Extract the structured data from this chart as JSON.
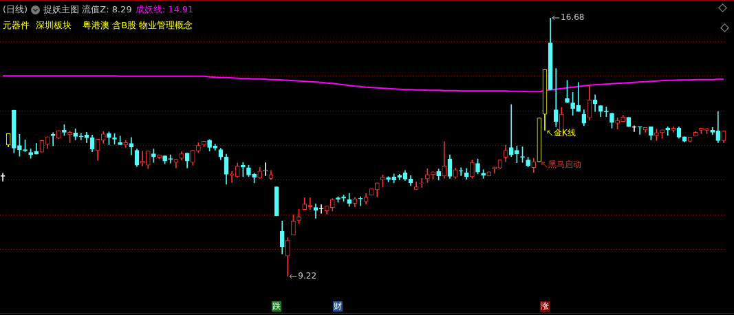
{
  "chart_data": {
    "type": "candlestick",
    "title": "(日线)",
    "subtitle": "捉妖主图 流值Z: 8.29",
    "categories": [
      null,
      null,
      null,
      null,
      null,
      null,
      null,
      null,
      null,
      null,
      null,
      null,
      null,
      null,
      null,
      null,
      null,
      null,
      null,
      null,
      null,
      null,
      null,
      null,
      null,
      null,
      null,
      null,
      null,
      null,
      null,
      null,
      null,
      null,
      null,
      null,
      null,
      null,
      null,
      null,
      null,
      null,
      null,
      null,
      null,
      null,
      null,
      null,
      null,
      null,
      null,
      null,
      null,
      null,
      null,
      null,
      null,
      null,
      null,
      null,
      null,
      null,
      null,
      null,
      null,
      null,
      null,
      null,
      null,
      null,
      null,
      null,
      null,
      null,
      null,
      null,
      null,
      null,
      null,
      null,
      null,
      null,
      null,
      null,
      null,
      null,
      null,
      null,
      null,
      null,
      null,
      null,
      null,
      null,
      null,
      null,
      null,
      null,
      null,
      null,
      null,
      null,
      null,
      null,
      null,
      null,
      null,
      null,
      null,
      null,
      null,
      null,
      null,
      null,
      null,
      null,
      null,
      null,
      null,
      null,
      null,
      null,
      null,
      null,
      null,
      null,
      null,
      null,
      null,
      null
    ],
    "ohlc": [
      [
        12.11,
        12.2,
        11.97,
        12.11
      ],
      [
        13.01,
        13.34,
        12.96,
        13.34
      ],
      [
        14.02,
        14.02,
        12.79,
        12.92
      ],
      [
        13.0,
        13.32,
        12.69,
        12.87
      ],
      [
        12.88,
        13.16,
        12.82,
        12.84
      ],
      [
        12.8,
        12.9,
        12.63,
        12.73
      ],
      [
        12.83,
        13.06,
        12.75,
        12.75
      ],
      [
        12.81,
        13.14,
        12.81,
        13.14
      ],
      [
        13.03,
        13.25,
        12.91,
        13.25
      ],
      [
        13.32,
        13.37,
        12.99,
        13.28
      ],
      [
        13.21,
        13.43,
        13.19,
        13.43
      ],
      [
        13.44,
        13.6,
        13.29,
        13.38
      ],
      [
        13.31,
        13.42,
        13.08,
        13.38
      ],
      [
        13.36,
        13.48,
        13.16,
        13.26
      ],
      [
        13.26,
        13.35,
        13.16,
        13.25
      ],
      [
        13.3,
        13.38,
        13.08,
        13.22
      ],
      [
        13.22,
        13.3,
        12.82,
        12.89
      ],
      [
        12.85,
        13.18,
        12.57,
        13.18
      ],
      [
        13.15,
        13.4,
        13.06,
        13.33
      ],
      [
        13.34,
        13.39,
        13.02,
        13.23
      ],
      [
        13.22,
        13.34,
        13.04,
        13.18
      ],
      [
        13.08,
        13.27,
        13.02,
        13.02
      ],
      [
        13.01,
        13.14,
        12.94,
        13.08
      ],
      [
        13.06,
        13.23,
        12.73,
        12.95
      ],
      [
        12.86,
        12.9,
        12.39,
        12.43
      ],
      [
        12.49,
        12.84,
        12.41,
        12.55
      ],
      [
        12.43,
        12.84,
        12.33,
        12.84
      ],
      [
        12.76,
        12.9,
        12.51,
        12.67
      ],
      [
        12.66,
        12.73,
        12.61,
        12.73
      ],
      [
        12.7,
        12.7,
        12.47,
        12.55
      ],
      [
        12.61,
        12.73,
        12.49,
        12.6
      ],
      [
        12.51,
        12.6,
        12.35,
        12.6
      ],
      [
        12.63,
        12.82,
        12.58,
        12.76
      ],
      [
        12.78,
        12.78,
        12.35,
        12.55
      ],
      [
        12.51,
        12.86,
        12.43,
        12.86
      ],
      [
        12.84,
        13.08,
        12.79,
        13.0
      ],
      [
        13.01,
        13.12,
        12.96,
        13.12
      ],
      [
        13.15,
        13.17,
        12.84,
        12.94
      ],
      [
        12.99,
        13.04,
        12.86,
        12.92
      ],
      [
        12.88,
        12.92,
        12.59,
        12.67
      ],
      [
        12.67,
        12.75,
        11.88,
        12.17
      ],
      [
        12.14,
        12.25,
        11.93,
        12.18
      ],
      [
        12.1,
        12.49,
        12.08,
        12.41
      ],
      [
        12.43,
        12.51,
        12.1,
        12.37
      ],
      [
        12.36,
        12.43,
        12.1,
        12.15
      ],
      [
        12.17,
        12.2,
        11.92,
        12.08
      ],
      [
        12.07,
        12.37,
        12.05,
        12.26
      ],
      [
        12.26,
        12.5,
        12.13,
        12.27
      ],
      [
        12.05,
        12.28,
        12.01,
        12.16
      ],
      [
        11.81,
        11.81,
        10.97,
        10.97
      ],
      [
        10.53,
        10.82,
        9.87,
        10.08
      ],
      [
        9.81,
        10.34,
        9.22,
        10.26
      ],
      [
        10.41,
        11.0,
        10.41,
        10.82
      ],
      [
        10.84,
        11.16,
        10.75,
        10.94
      ],
      [
        11.15,
        11.49,
        11.15,
        11.31
      ],
      [
        11.23,
        11.49,
        11.15,
        11.28
      ],
      [
        11.21,
        11.31,
        10.9,
        11.13
      ],
      [
        11.17,
        11.29,
        11.04,
        11.17
      ],
      [
        11.11,
        11.25,
        11.02,
        11.25
      ],
      [
        11.21,
        11.47,
        11.11,
        11.44
      ],
      [
        11.49,
        11.52,
        11.36,
        11.45
      ],
      [
        11.52,
        11.57,
        11.39,
        11.48
      ],
      [
        11.44,
        11.62,
        11.24,
        11.33
      ],
      [
        11.33,
        11.5,
        11.23,
        11.46
      ],
      [
        11.47,
        11.52,
        11.26,
        11.46
      ],
      [
        11.38,
        11.61,
        11.31,
        11.51
      ],
      [
        11.57,
        11.75,
        11.57,
        11.75
      ],
      [
        11.72,
        11.92,
        11.52,
        11.92
      ],
      [
        12.01,
        12.15,
        11.8,
        12.09
      ],
      [
        12.07,
        12.1,
        11.95,
        12.02
      ],
      [
        12.09,
        12.18,
        11.92,
        12.0
      ],
      [
        12.13,
        12.17,
        12.01,
        12.08
      ],
      [
        12.21,
        12.28,
        11.99,
        12.03
      ],
      [
        12.03,
        12.13,
        11.84,
        11.92
      ],
      [
        11.73,
        11.95,
        11.73,
        11.81
      ],
      [
        11.9,
        12.05,
        11.79,
        11.91
      ],
      [
        12.04,
        12.33,
        11.93,
        12.16
      ],
      [
        12.16,
        12.24,
        12.03,
        12.24
      ],
      [
        12.25,
        12.32,
        12.0,
        12.12
      ],
      [
        12.12,
        13.11,
        12.05,
        12.41
      ],
      [
        12.61,
        12.73,
        12.05,
        12.11
      ],
      [
        12.09,
        12.35,
        12.05,
        12.3
      ],
      [
        12.27,
        12.36,
        12.13,
        12.26
      ],
      [
        12.21,
        12.34,
        12.02,
        12.1
      ],
      [
        12.1,
        12.58,
        12.05,
        12.51
      ],
      [
        12.48,
        12.61,
        12.18,
        12.23
      ],
      [
        12.2,
        12.3,
        12.05,
        12.14
      ],
      [
        12.12,
        12.24,
        12.12,
        12.24
      ],
      [
        12.32,
        12.38,
        12.2,
        12.38
      ],
      [
        12.35,
        12.58,
        12.33,
        12.58
      ],
      [
        12.66,
        13.01,
        12.53,
        12.86
      ],
      [
        12.94,
        14.18,
        12.68,
        12.73
      ],
      [
        12.86,
        12.98,
        12.5,
        12.76
      ],
      [
        12.67,
        12.96,
        12.51,
        12.66
      ],
      [
        12.58,
        12.66,
        12.38,
        12.41
      ],
      [
        12.36,
        12.63,
        12.22,
        12.53
      ],
      [
        12.53,
        13.79,
        12.53,
        13.79
      ],
      [
        13.9,
        15.19,
        13.44,
        15.19
      ],
      [
        15.96,
        16.68,
        14.61,
        14.61
      ],
      [
        14.03,
        15.22,
        13.54,
        13.69
      ],
      [
        13.27,
        14.1,
        13.27,
        13.9
      ],
      [
        14.35,
        14.88,
        14.23,
        14.24
      ],
      [
        14.23,
        14.53,
        13.87,
        14.07
      ],
      [
        14.16,
        14.82,
        13.98,
        13.98
      ],
      [
        13.9,
        14.03,
        13.57,
        13.64
      ],
      [
        13.8,
        14.74,
        13.74,
        14.31
      ],
      [
        14.31,
        14.46,
        13.98,
        14.2
      ],
      [
        14.15,
        14.15,
        13.83,
        13.98
      ],
      [
        13.98,
        14.11,
        13.83,
        13.97
      ],
      [
        13.93,
        13.93,
        13.5,
        13.66
      ],
      [
        13.64,
        13.8,
        13.47,
        13.72
      ],
      [
        13.69,
        13.87,
        13.69,
        13.82
      ],
      [
        13.81,
        13.81,
        13.54,
        13.54
      ],
      [
        13.53,
        13.57,
        13.4,
        13.52
      ],
      [
        13.54,
        13.54,
        13.32,
        13.53
      ],
      [
        13.45,
        13.52,
        13.38,
        13.52
      ],
      [
        13.54,
        13.54,
        13.16,
        13.29
      ],
      [
        13.29,
        13.47,
        13.14,
        13.37
      ],
      [
        13.37,
        13.45,
        13.21,
        13.45
      ],
      [
        13.5,
        13.54,
        13.29,
        13.45
      ],
      [
        13.44,
        13.54,
        13.38,
        13.5
      ],
      [
        13.5,
        13.54,
        13.21,
        13.24
      ],
      [
        13.25,
        13.25,
        13.1,
        13.12
      ],
      [
        13.12,
        13.24,
        13.1,
        13.24
      ],
      [
        13.27,
        13.4,
        13.27,
        13.38
      ],
      [
        13.44,
        13.5,
        13.34,
        13.5
      ],
      [
        13.44,
        13.49,
        13.34,
        13.49
      ],
      [
        13.44,
        13.52,
        13.31,
        13.38
      ],
      [
        13.42,
        13.98,
        13.08,
        13.14
      ],
      [
        13.14,
        13.42,
        13.08,
        13.42
      ]
    ],
    "colors": [
      "#ffffff",
      "#ffff00",
      "#54fcfc",
      "#54fcfc",
      "#54fcfc",
      "#54fcfc",
      "#54fcfc",
      "#ff3232",
      "#ff3232",
      "#54fcfc",
      "#ff3232",
      "#54fcfc",
      "#ff3232",
      "#54fcfc",
      "#54fcfc",
      "#54fcfc",
      "#54fcfc",
      "#ff3232",
      "#ff3232",
      "#54fcfc",
      "#54fcfc",
      "#54fcfc",
      "#ff3232",
      "#54fcfc",
      "#54fcfc",
      "#ff3232",
      "#ff3232",
      "#54fcfc",
      "#ff3232",
      "#54fcfc",
      "#54fcfc",
      "#ff3232",
      "#ff3232",
      "#54fcfc",
      "#ff3232",
      "#ff3232",
      "#ff3232",
      "#54fcfc",
      "#54fcfc",
      "#54fcfc",
      "#54fcfc",
      "#ff3232",
      "#ff3232",
      "#54fcfc",
      "#54fcfc",
      "#54fcfc",
      "#ff3232",
      "#ffffff",
      "#ff3232",
      "#54fcfc",
      "#54fcfc",
      "#ff3232",
      "#ff3232",
      "#ff3232",
      "#ff3232",
      "#ff3232",
      "#54fcfc",
      "#ffffff",
      "#ff3232",
      "#ff3232",
      "#54fcfc",
      "#54fcfc",
      "#54fcfc",
      "#ff3232",
      "#54fcfc",
      "#ff3232",
      "#ff3232",
      "#ff3232",
      "#ff3232",
      "#54fcfc",
      "#54fcfc",
      "#54fcfc",
      "#54fcfc",
      "#54fcfc",
      "#ff3232",
      "#ff3232",
      "#ff3232",
      "#ff3232",
      "#54fcfc",
      "#ff3232",
      "#54fcfc",
      "#ff3232",
      "#54fcfc",
      "#54fcfc",
      "#ff3232",
      "#54fcfc",
      "#54fcfc",
      "#ff3232",
      "#ff3232",
      "#ff3232",
      "#ff3232",
      "#54fcfc",
      "#54fcfc",
      "#54fcfc",
      "#54fcfc",
      "#ff3232",
      "#ffff00",
      "#ffff00",
      "#54fcfc",
      "#54fcfc",
      "#ff3232",
      "#54fcfc",
      "#54fcfc",
      "#54fcfc",
      "#54fcfc",
      "#ff3232",
      "#54fcfc",
      "#54fcfc",
      "#54fcfc",
      "#54fcfc",
      "#ff3232",
      "#ff3232",
      "#54fcfc",
      "#ffffff",
      "#54fcfc",
      "#ff3232",
      "#54fcfc",
      "#ff3232",
      "#ff3232",
      "#54fcfc",
      "#ff3232",
      "#54fcfc",
      "#54fcfc",
      "#ff3232",
      "#ff3232",
      "#ff3232",
      "#ff3232",
      "#54fcfc",
      "#54fcfc",
      "#ff3232"
    ],
    "series": [
      {
        "type": "line",
        "name": "成妖线: 14.91",
        "color": "#ff00ff",
        "values": [
          15.01,
          15.01,
          15.01,
          15.01,
          15.01,
          15.01,
          15.01,
          15.01,
          15.01,
          15.01,
          15.01,
          15.01,
          15.01,
          15.01,
          15.01,
          15.01,
          15.01,
          15.01,
          15.01,
          15.01,
          15.01,
          15.0,
          15.0,
          15.0,
          15.0,
          15.0,
          15.0,
          15.0,
          15.0,
          15.0,
          15.0,
          15.0,
          15.0,
          15.0,
          15.0,
          15.0,
          15.0,
          14.98,
          14.97,
          14.96,
          14.96,
          14.95,
          14.94,
          14.93,
          14.93,
          14.92,
          14.92,
          14.91,
          14.9,
          14.9,
          14.89,
          14.88,
          14.87,
          14.86,
          14.85,
          14.84,
          14.83,
          14.82,
          14.8,
          14.79,
          14.77,
          14.75,
          14.73,
          14.71,
          14.7,
          14.68,
          14.67,
          14.66,
          14.65,
          14.64,
          14.63,
          14.62,
          14.61,
          14.61,
          14.6,
          14.6,
          14.59,
          14.59,
          14.59,
          14.58,
          14.58,
          14.58,
          14.57,
          14.57,
          14.57,
          14.57,
          14.57,
          14.57,
          14.57,
          14.57,
          14.57,
          14.56,
          14.56,
          14.56,
          14.55,
          14.55,
          14.55,
          14.58,
          14.6,
          14.62,
          14.64,
          14.66,
          14.68,
          14.7,
          14.72,
          14.74,
          14.75,
          14.76,
          14.77,
          14.78,
          14.79,
          14.8,
          14.81,
          14.82,
          14.83,
          14.84,
          14.85,
          14.86,
          14.87,
          14.88,
          14.88,
          14.89,
          14.89,
          14.89,
          14.9,
          14.9,
          14.9,
          14.9,
          14.91,
          14.91
        ]
      }
    ],
    "yticks": [
      {
        "value": 10,
        "label": null
      },
      {
        "value": 11,
        "label": null
      },
      {
        "value": 12,
        "label": null
      },
      {
        "value": 13,
        "label": null
      },
      {
        "value": 14,
        "label": null
      },
      {
        "value": 15,
        "label": null
      },
      {
        "value": 16,
        "label": null
      }
    ],
    "grid": "y",
    "marker": "none",
    "annotations": [
      "元器件",
      "深圳板块",
      "粤港澳 含B股 物业管理概念",
      "16.68",
      "9.22",
      "金K线",
      "黑马启动",
      "跌",
      "财",
      "涨"
    ]
  }
}
